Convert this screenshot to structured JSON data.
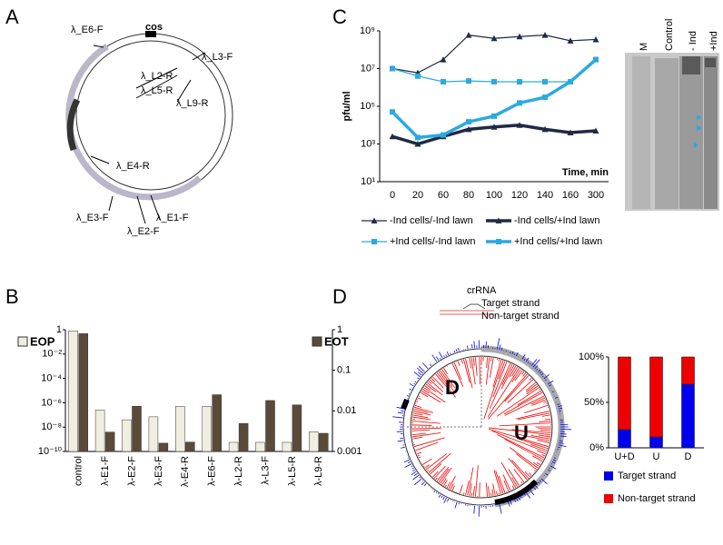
{
  "panel_labels": [
    "A",
    "B",
    "C",
    "D"
  ],
  "map": {
    "cos": "cos",
    "sites": [
      "λ_E6-F",
      "λ_L3-F",
      "λ_L2-R",
      "λ_L5-R",
      "λ_L9-R",
      "λ_E4-R",
      "λ_E3-F",
      "λ_E2-F",
      "λ_E1-F"
    ]
  },
  "gel": {
    "lanes": [
      "M",
      "Control",
      "- Ind",
      "+Ind"
    ]
  },
  "circle": {
    "crrna": "crRNA",
    "target": "Target strand",
    "nontarget": "Non-target strand",
    "d": "D",
    "u": "U"
  },
  "chart_data": [
    {
      "type": "bar",
      "log_scale": true,
      "categories": [
        "control",
        "λ-E1-F",
        "λ-E2-F",
        "λ-E3-F",
        "λ-E4-R",
        "λ-E6-F",
        "λ-L2-R",
        "λ-L3-F",
        "λ-L5-R",
        "λ-L9-R"
      ],
      "series": [
        {
          "name": "EOP",
          "color": "#efeee0",
          "values": [
            0.8,
            2.5e-07,
            4e-08,
            7e-08,
            5e-07,
            5e-07,
            5.6e-10,
            5.6e-10,
            5.6e-10,
            4e-09
          ]
        },
        {
          "name": "EOT",
          "color": "#5a4a3a",
          "axis": "y2",
          "values": [
            0.8,
            0.003,
            0.013,
            0.0016,
            0.0017,
            0.025,
            0.0049,
            0.018,
            0.014,
            0.0028
          ]
        }
      ],
      "ylim": [
        1e-10,
        1
      ],
      "yticks": [
        1,
        {
          "value": 0.01,
          "label": "10⁻²"
        },
        {
          "value": 0.0001,
          "label": "10⁻⁴"
        },
        {
          "value": 1e-06,
          "label": "10⁻⁶"
        },
        {
          "value": 1e-08,
          "label": "10⁻⁸"
        },
        {
          "value": 1e-10,
          "label": "10⁻¹⁰"
        }
      ],
      "y2lim": [
        0.001,
        1
      ],
      "y2ticks": [
        1,
        0.1,
        0.01,
        0.001
      ]
    },
    {
      "type": "line",
      "log_scale": true,
      "ylabel": "pfu/ml",
      "xlabel": "Time, min",
      "categories": [
        "0",
        "20",
        "60",
        "80",
        "100",
        "120",
        "140",
        "160",
        "300"
      ],
      "series": [
        {
          "name": "-Ind cells/-Ind lawn",
          "color": "#1f2a44",
          "width": 1.2,
          "marker": "triangle",
          "values": [
            10000000.0,
            6000000.0,
            30000000.0,
            600000000.0,
            400000000.0,
            500000000.0,
            600000000.0,
            300000000.0,
            350000000.0
          ]
        },
        {
          "name": "-Ind cells/+Ind lawn",
          "color": "#1f2a44",
          "width": 3.5,
          "marker": "triangle",
          "values": [
            2500,
            1000,
            2500,
            6000,
            8000,
            10000,
            6000,
            4000,
            5000
          ]
        },
        {
          "name": "+Ind cells/-Ind lawn",
          "color": "#29aae1",
          "width": 1.2,
          "marker": "square",
          "values": [
            10000000.0,
            4000000.0,
            2000000.0,
            2200000.0,
            2000000.0,
            2000000.0,
            2000000.0,
            2000000.0,
            30000000.0
          ]
        },
        {
          "name": "+Ind cells/+Ind lawn",
          "color": "#29aae1",
          "width": 3.5,
          "marker": "square",
          "values": [
            50000,
            2200,
            3000,
            15000,
            30000,
            150000,
            300000,
            2000000,
            30000000
          ]
        }
      ],
      "ylim": [
        10,
        1000000000.0
      ],
      "yticks": [
        {
          "value": 10,
          "label": "10¹"
        },
        {
          "value": 1000,
          "label": "10³"
        },
        {
          "value": 100000,
          "label": "10⁵"
        },
        {
          "value": 10000000,
          "label": "10⁷"
        },
        {
          "value": 1000000000,
          "label": "10⁹"
        }
      ]
    },
    {
      "type": "stacked_bar",
      "categories": [
        "U+D",
        "U",
        "D"
      ],
      "series": [
        {
          "name": "Target strand",
          "color": "#0000ee",
          "values": [
            20,
            12,
            70
          ]
        },
        {
          "name": "Non-target strand",
          "color": "#ee0000",
          "values": [
            80,
            88,
            30
          ]
        }
      ],
      "ylim": [
        0,
        100
      ],
      "yticks": [
        {
          "value": 0,
          "label": "0%"
        },
        {
          "value": 50,
          "label": "50%"
        },
        {
          "value": 100,
          "label": "100%"
        }
      ]
    }
  ]
}
